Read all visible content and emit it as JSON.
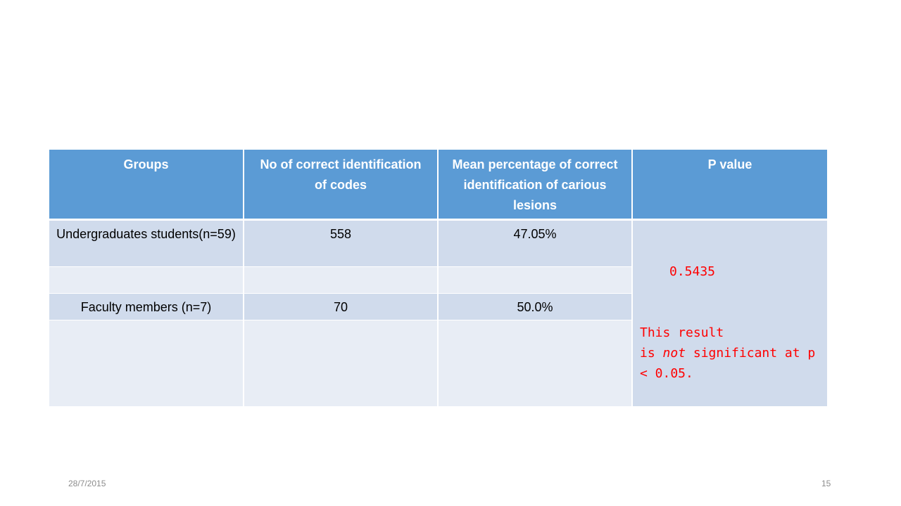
{
  "table": {
    "headers": [
      "Groups",
      "No of correct identification of codes",
      "Mean percentage of correct identification of carious lesions",
      "P value"
    ],
    "rows": [
      {
        "group": "Undergraduates students(n=59)",
        "correct_codes": "558",
        "mean_percentage": "47.05%"
      },
      {
        "group": "",
        "correct_codes": "",
        "mean_percentage": ""
      },
      {
        "group": "Faculty members (n=7)",
        "correct_codes": "70",
        "mean_percentage": "50.0%"
      },
      {
        "group": "",
        "correct_codes": "",
        "mean_percentage": ""
      }
    ],
    "p_value": "0.5435",
    "p_note": {
      "line1": "This result",
      "line2_pre": "is ",
      "line2_em": "not",
      "line2_post": " significant at p",
      "line3": "< 0.05."
    }
  },
  "footer": {
    "date": "28/7/2015",
    "page_number": "15"
  },
  "colors": {
    "header_bg": "#5b9bd5",
    "band_dark": "#d0dbec",
    "band_light": "#e8edf5",
    "p_text": "#ff0000"
  }
}
